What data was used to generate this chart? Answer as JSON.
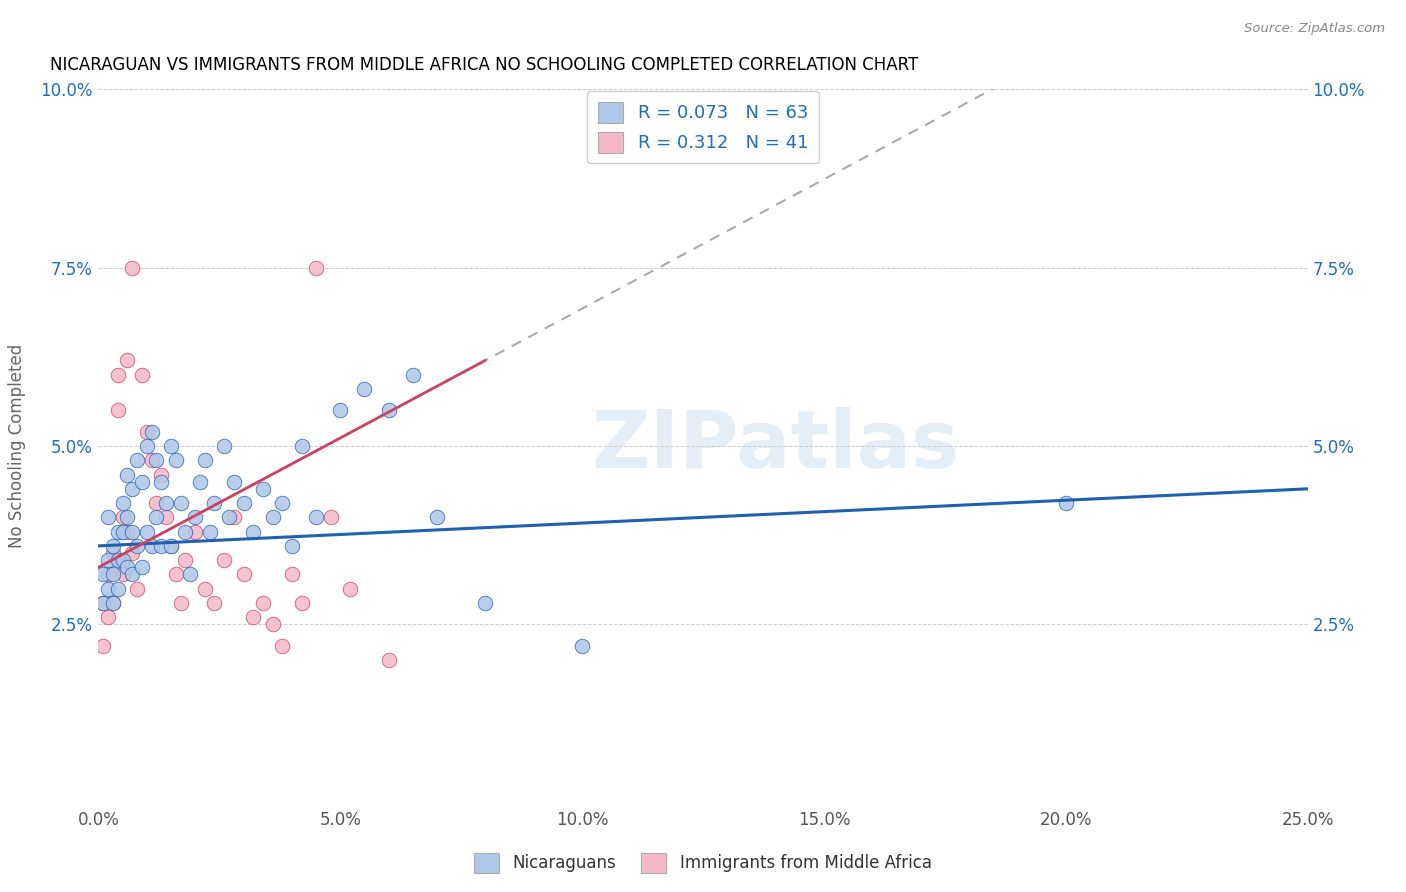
{
  "title": "NICARAGUAN VS IMMIGRANTS FROM MIDDLE AFRICA NO SCHOOLING COMPLETED CORRELATION CHART",
  "source": "Source: ZipAtlas.com",
  "ylabel": "No Schooling Completed",
  "xlim": [
    0,
    0.25
  ],
  "ylim": [
    0,
    0.1
  ],
  "xticks": [
    0.0,
    0.05,
    0.1,
    0.15,
    0.2,
    0.25
  ],
  "yticks": [
    0.0,
    0.025,
    0.05,
    0.075,
    0.1
  ],
  "xticklabels": [
    "0.0%",
    "5.0%",
    "10.0%",
    "15.0%",
    "20.0%",
    "25.0%"
  ],
  "yticklabels": [
    "",
    "2.5%",
    "5.0%",
    "7.5%",
    "10.0%"
  ],
  "legend1_r": "0.073",
  "legend1_n": "63",
  "legend2_r": "0.312",
  "legend2_n": "41",
  "legend_labels": [
    "Nicaraguans",
    "Immigrants from Middle Africa"
  ],
  "blue_color": "#aec6e8",
  "pink_color": "#f5b8c8",
  "blue_line_color": "#2060b0",
  "pink_line_color": "#d04060",
  "watermark": "ZIPatlas",
  "blue_scatter_x": [
    0.001,
    0.001,
    0.002,
    0.002,
    0.002,
    0.003,
    0.003,
    0.003,
    0.004,
    0.004,
    0.004,
    0.005,
    0.005,
    0.005,
    0.006,
    0.006,
    0.006,
    0.007,
    0.007,
    0.007,
    0.008,
    0.008,
    0.009,
    0.009,
    0.01,
    0.01,
    0.011,
    0.011,
    0.012,
    0.012,
    0.013,
    0.013,
    0.014,
    0.015,
    0.015,
    0.016,
    0.017,
    0.018,
    0.019,
    0.02,
    0.021,
    0.022,
    0.023,
    0.024,
    0.026,
    0.027,
    0.028,
    0.03,
    0.032,
    0.034,
    0.036,
    0.038,
    0.04,
    0.042,
    0.045,
    0.05,
    0.055,
    0.06,
    0.065,
    0.07,
    0.08,
    0.1,
    0.2
  ],
  "blue_scatter_y": [
    0.032,
    0.028,
    0.034,
    0.03,
    0.04,
    0.036,
    0.032,
    0.028,
    0.038,
    0.034,
    0.03,
    0.042,
    0.038,
    0.034,
    0.046,
    0.04,
    0.033,
    0.044,
    0.038,
    0.032,
    0.048,
    0.036,
    0.045,
    0.033,
    0.05,
    0.038,
    0.052,
    0.036,
    0.048,
    0.04,
    0.045,
    0.036,
    0.042,
    0.05,
    0.036,
    0.048,
    0.042,
    0.038,
    0.032,
    0.04,
    0.045,
    0.048,
    0.038,
    0.042,
    0.05,
    0.04,
    0.045,
    0.042,
    0.038,
    0.044,
    0.04,
    0.042,
    0.036,
    0.05,
    0.04,
    0.055,
    0.058,
    0.055,
    0.06,
    0.04,
    0.028,
    0.022,
    0.042
  ],
  "blue_line_x": [
    0.0,
    0.25
  ],
  "blue_line_y": [
    0.036,
    0.044
  ],
  "pink_scatter_x": [
    0.001,
    0.001,
    0.002,
    0.002,
    0.003,
    0.003,
    0.004,
    0.004,
    0.005,
    0.005,
    0.006,
    0.006,
    0.007,
    0.007,
    0.008,
    0.009,
    0.01,
    0.011,
    0.012,
    0.013,
    0.014,
    0.015,
    0.016,
    0.017,
    0.018,
    0.02,
    0.022,
    0.024,
    0.026,
    0.028,
    0.03,
    0.032,
    0.034,
    0.036,
    0.038,
    0.04,
    0.042,
    0.045,
    0.048,
    0.052,
    0.06
  ],
  "pink_scatter_y": [
    0.028,
    0.022,
    0.026,
    0.032,
    0.028,
    0.035,
    0.06,
    0.055,
    0.04,
    0.032,
    0.062,
    0.038,
    0.075,
    0.035,
    0.03,
    0.06,
    0.052,
    0.048,
    0.042,
    0.046,
    0.04,
    0.036,
    0.032,
    0.028,
    0.034,
    0.038,
    0.03,
    0.028,
    0.034,
    0.04,
    0.032,
    0.026,
    0.028,
    0.025,
    0.022,
    0.032,
    0.028,
    0.075,
    0.04,
    0.03,
    0.02
  ],
  "pink_line_x": [
    0.0,
    0.08
  ],
  "pink_line_y": [
    0.033,
    0.062
  ]
}
